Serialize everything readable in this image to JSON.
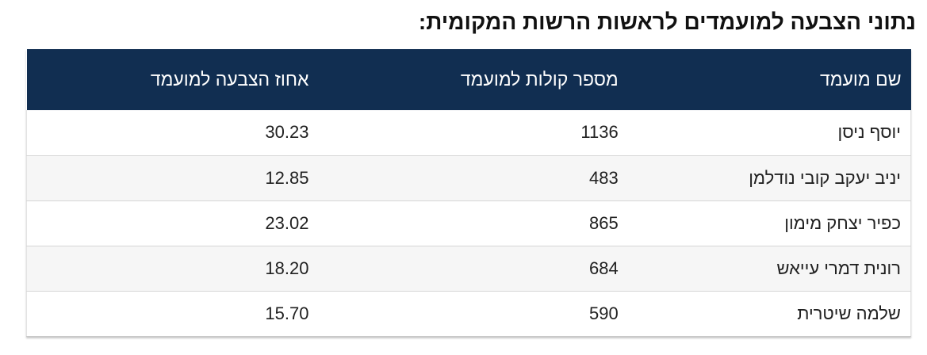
{
  "page": {
    "title": "נתוני הצבעה למועמדים לראשות הרשות המקומית:"
  },
  "table": {
    "columns": [
      {
        "key": "name",
        "label": "שם מועמד"
      },
      {
        "key": "votes",
        "label": "מספר קולות למועמד"
      },
      {
        "key": "percent",
        "label": "אחוז הצבעה למועמד"
      }
    ],
    "rows": [
      {
        "name": "יוסף ניסן",
        "votes": "1136",
        "percent": "30.23"
      },
      {
        "name": "יניב יעקב קובי נודלמן",
        "votes": "483",
        "percent": "12.85"
      },
      {
        "name": "כפיר יצחק מימון",
        "votes": "865",
        "percent": "23.02"
      },
      {
        "name": "רונית דמרי עייאש",
        "votes": "684",
        "percent": "18.20"
      },
      {
        "name": "שלמה שיטרית",
        "votes": "590",
        "percent": "15.70"
      }
    ]
  },
  "chart_data": {
    "type": "table",
    "title": "נתוני הצבעה למועמדים לראשות הרשות המקומית",
    "categories": [
      "יוסף ניסן",
      "יניב יעקב קובי נודלמן",
      "כפיר יצחק מימון",
      "רונית דמרי עייאש",
      "שלמה שיטרית"
    ],
    "series": [
      {
        "name": "מספר קולות למועמד",
        "values": [
          1136,
          483,
          865,
          684,
          590
        ]
      },
      {
        "name": "אחוז הצבעה למועמד",
        "values": [
          30.23,
          12.85,
          23.02,
          18.2,
          15.7
        ]
      }
    ]
  },
  "colors": {
    "header_bg": "#112e51",
    "header_text": "#ffffff",
    "row_bg": "#ffffff",
    "row_alt_bg": "#f6f6f6",
    "row_border": "#d6d6d6",
    "body_text": "#212121",
    "title_text": "#111111"
  }
}
